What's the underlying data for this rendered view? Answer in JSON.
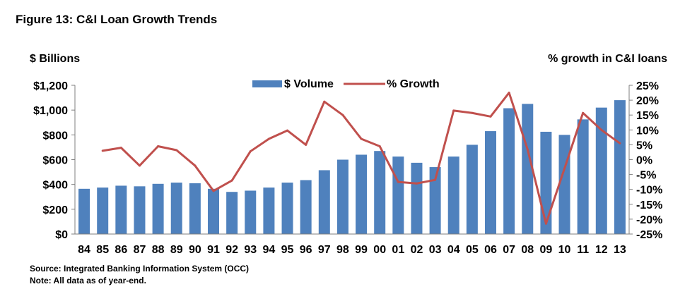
{
  "figure_title": "Figure 13: C&I Loan Growth Trends",
  "footer": {
    "source": "Source: Integrated Banking Information System (OCC)",
    "note": "Note: All  data as of year-end."
  },
  "colors": {
    "bar": "#4f81bd",
    "line": "#c0504d",
    "axis": "#7f7f7f"
  },
  "chart_data": {
    "type": "bar",
    "title": "",
    "ylabel": "$ Billions",
    "y2label": "% growth in C&I loans",
    "categories": [
      "84",
      "85",
      "86",
      "87",
      "88",
      "89",
      "90",
      "91",
      "92",
      "93",
      "94",
      "95",
      "96",
      "97",
      "98",
      "99",
      "00",
      "01",
      "02",
      "03",
      "04",
      "05",
      "06",
      "07",
      "08",
      "09",
      "10",
      "11",
      "12",
      "13"
    ],
    "ylim": [
      0,
      1200
    ],
    "y_ticks": [
      0,
      200,
      400,
      600,
      800,
      1000,
      1200
    ],
    "y_tick_labels": [
      "$0",
      "$200",
      "$400",
      "$600",
      "$800",
      "$1,000",
      "$1,200"
    ],
    "y2lim": [
      -25,
      25
    ],
    "y2_ticks": [
      -25,
      -20,
      -15,
      -10,
      -5,
      0,
      5,
      10,
      15,
      20,
      25
    ],
    "y2_tick_labels": [
      "-25%",
      "-20%",
      "-15%",
      "-10%",
      "-5%",
      "0%",
      "5%",
      "10%",
      "15%",
      "20%",
      "25%"
    ],
    "legend_position": "top-center",
    "grid": false,
    "series": [
      {
        "name": "$ Volume",
        "type": "bar",
        "axis": "left",
        "values": [
          365,
          375,
          390,
          385,
          405,
          415,
          410,
          365,
          340,
          350,
          375,
          415,
          435,
          515,
          600,
          640,
          670,
          625,
          575,
          540,
          625,
          720,
          830,
          1015,
          1050,
          825,
          800,
          925,
          1020,
          1080
        ]
      },
      {
        "name": "% Growth",
        "type": "line",
        "axis": "right",
        "values": [
          null,
          3,
          4,
          -2,
          4.5,
          3.2,
          -2,
          -10.5,
          -7,
          2.8,
          7,
          9.8,
          5,
          19.5,
          15,
          7,
          4.5,
          -7.5,
          -8,
          -6.8,
          16.5,
          15.7,
          14.5,
          22.5,
          3.5,
          -21.5,
          -3,
          15.7,
          10,
          5.5
        ]
      }
    ]
  }
}
